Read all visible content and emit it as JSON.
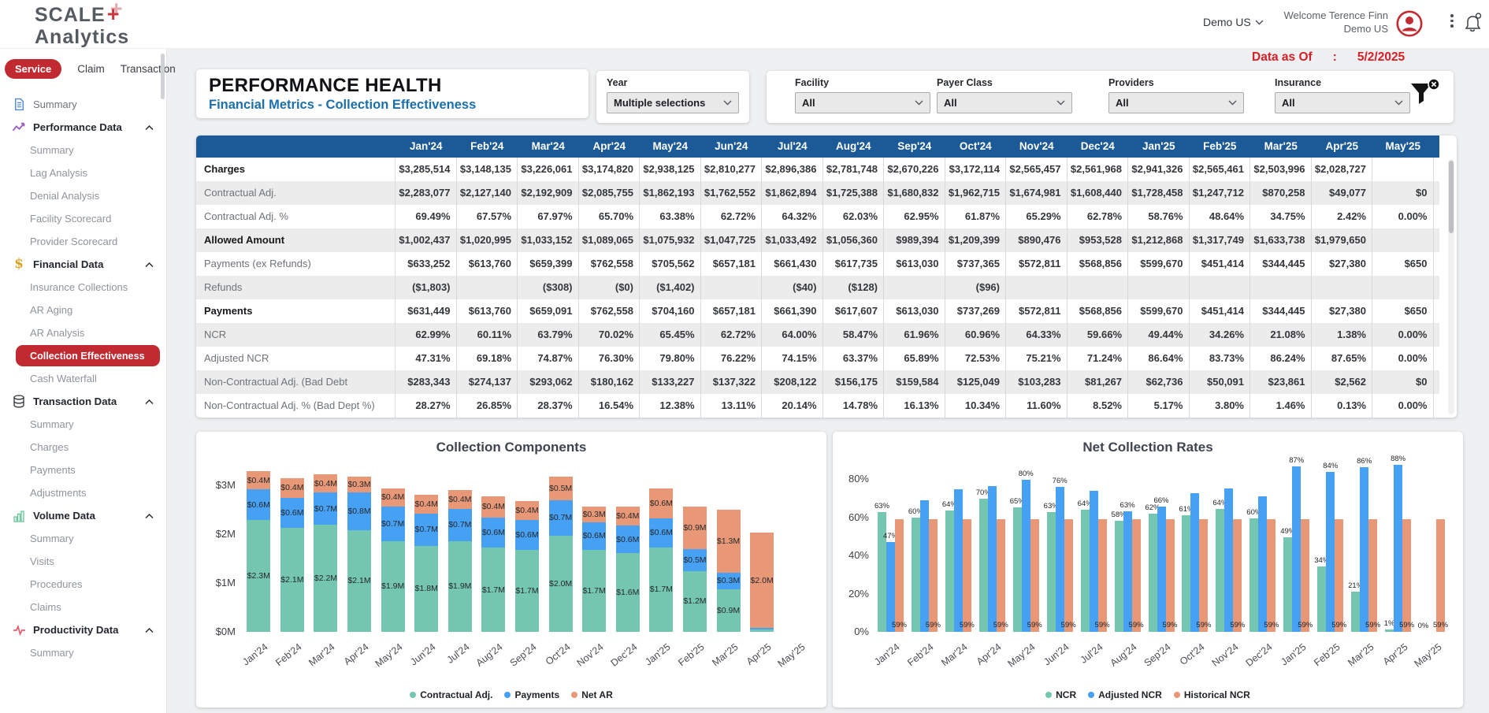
{
  "header": {
    "logo_line1": "SCALE",
    "logo_plus": "+",
    "logo_line2": "Analytics",
    "org_selector": "Demo US",
    "welcome_line1": "Welcome Terence Finn",
    "welcome_line2": "Demo US"
  },
  "sidebar": {
    "tabs": [
      {
        "label": "Service",
        "active": true
      },
      {
        "label": "Claim",
        "active": false
      },
      {
        "label": "Transaction",
        "active": false
      }
    ],
    "items": [
      {
        "label": "Summary",
        "icon": "document-icon",
        "level": 0,
        "group": false
      },
      {
        "label": "Performance Data",
        "icon": "trend-icon",
        "level": 0,
        "group": true
      },
      {
        "label": "Summary",
        "level": 1
      },
      {
        "label": "Lag Analysis",
        "level": 1
      },
      {
        "label": "Denial Analysis",
        "level": 1
      },
      {
        "label": "Facility Scorecard",
        "level": 1
      },
      {
        "label": "Provider Scorecard",
        "level": 1
      },
      {
        "label": "Financial Data",
        "icon": "dollar-icon",
        "level": 0,
        "group": true
      },
      {
        "label": "Insurance Collections",
        "level": 1
      },
      {
        "label": "AR Aging",
        "level": 1
      },
      {
        "label": "AR Analysis",
        "level": 1
      },
      {
        "label": "Collection Effectiveness",
        "level": 1,
        "selected": true
      },
      {
        "label": "Cash Waterfall",
        "level": 1
      },
      {
        "label": "Transaction Data",
        "icon": "database-icon",
        "level": 0,
        "group": true
      },
      {
        "label": "Summary",
        "level": 1
      },
      {
        "label": "Charges",
        "level": 1
      },
      {
        "label": "Payments",
        "level": 1
      },
      {
        "label": "Adjustments",
        "level": 1
      },
      {
        "label": "Volume Data",
        "icon": "bar-chart-icon",
        "level": 0,
        "group": true
      },
      {
        "label": "Summary",
        "level": 1
      },
      {
        "label": "Visits",
        "level": 1
      },
      {
        "label": "Procedures",
        "level": 1
      },
      {
        "label": "Claims",
        "level": 1
      },
      {
        "label": "Productivity Data",
        "icon": "pulse-icon",
        "level": 0,
        "group": true
      },
      {
        "label": "Summary",
        "level": 1
      }
    ]
  },
  "page": {
    "title": "PERFORMANCE HEALTH",
    "subtitle": "Financial Metrics - Collection Effectiveness"
  },
  "filters": {
    "data_as_of_label": "Data as Of",
    "data_as_of_colon": ":",
    "data_as_of_value": "5/2/2025",
    "year": {
      "label": "Year",
      "value": "Multiple selections"
    },
    "groups": [
      {
        "label": "Facility",
        "value": "All"
      },
      {
        "label": "Payer Class",
        "value": "All"
      },
      {
        "label": "Providers",
        "value": "All"
      },
      {
        "label": "Insurance",
        "value": "All"
      }
    ]
  },
  "table": {
    "columns": [
      "Jan'24",
      "Feb'24",
      "Mar'24",
      "Apr'24",
      "May'24",
      "Jun'24",
      "Jul'24",
      "Aug'24",
      "Sep'24",
      "Oct'24",
      "Nov'24",
      "Dec'24",
      "Jan'25",
      "Feb'25",
      "Mar'25",
      "Apr'25",
      "May'25"
    ],
    "rows": [
      {
        "label": "Charges",
        "bold": true,
        "values": [
          "$3,285,514",
          "$3,148,135",
          "$3,226,061",
          "$3,174,820",
          "$2,938,125",
          "$2,810,277",
          "$2,896,386",
          "$2,781,748",
          "$2,670,226",
          "$3,172,114",
          "$2,565,457",
          "$2,561,968",
          "$2,941,326",
          "$2,565,461",
          "$2,503,996",
          "$2,028,727",
          ""
        ]
      },
      {
        "label": "Contractual Adj.",
        "bold": false,
        "values": [
          "$2,283,077",
          "$2,127,140",
          "$2,192,909",
          "$2,085,755",
          "$1,862,193",
          "$1,762,552",
          "$1,862,894",
          "$1,725,388",
          "$1,680,832",
          "$1,962,715",
          "$1,674,981",
          "$1,608,440",
          "$1,728,458",
          "$1,247,712",
          "$870,258",
          "$49,077",
          "$0"
        ]
      },
      {
        "label": "Contractual Adj. %",
        "bold": false,
        "values": [
          "69.49%",
          "67.57%",
          "67.97%",
          "65.70%",
          "63.38%",
          "62.72%",
          "64.32%",
          "62.03%",
          "62.95%",
          "61.87%",
          "65.29%",
          "62.78%",
          "58.76%",
          "48.64%",
          "34.75%",
          "2.42%",
          "0.00%"
        ]
      },
      {
        "label": "Allowed Amount",
        "bold": true,
        "values": [
          "$1,002,437",
          "$1,020,995",
          "$1,033,152",
          "$1,089,065",
          "$1,075,932",
          "$1,047,725",
          "$1,033,492",
          "$1,056,360",
          "$989,394",
          "$1,209,399",
          "$890,476",
          "$953,528",
          "$1,212,868",
          "$1,317,749",
          "$1,633,738",
          "$1,979,650",
          ""
        ]
      },
      {
        "label": "Payments (ex Refunds)",
        "bold": false,
        "values": [
          "$633,252",
          "$613,760",
          "$659,399",
          "$762,558",
          "$705,562",
          "$657,181",
          "$661,430",
          "$617,735",
          "$613,030",
          "$737,365",
          "$572,811",
          "$568,856",
          "$599,670",
          "$451,414",
          "$344,445",
          "$27,380",
          "$650"
        ]
      },
      {
        "label": "Refunds",
        "bold": false,
        "values": [
          "($1,803)",
          "",
          "($308)",
          "($0)",
          "($1,402)",
          "",
          "($40)",
          "($128)",
          "",
          "($96)",
          "",
          "",
          "",
          "",
          "",
          "",
          ""
        ]
      },
      {
        "label": "Payments",
        "bold": true,
        "values": [
          "$631,449",
          "$613,760",
          "$659,091",
          "$762,558",
          "$704,160",
          "$657,181",
          "$661,390",
          "$617,607",
          "$613,030",
          "$737,269",
          "$572,811",
          "$568,856",
          "$599,670",
          "$451,414",
          "$344,445",
          "$27,380",
          "$650"
        ]
      },
      {
        "label": "NCR",
        "bold": false,
        "values": [
          "62.99%",
          "60.11%",
          "63.79%",
          "70.02%",
          "65.45%",
          "62.72%",
          "64.00%",
          "58.47%",
          "61.96%",
          "60.96%",
          "64.33%",
          "59.66%",
          "49.44%",
          "34.26%",
          "21.08%",
          "1.38%",
          "0.00%"
        ]
      },
      {
        "label": "Adjusted NCR",
        "bold": false,
        "values": [
          "47.31%",
          "69.18%",
          "74.87%",
          "76.30%",
          "79.80%",
          "76.22%",
          "74.15%",
          "63.37%",
          "65.89%",
          "72.53%",
          "75.21%",
          "71.24%",
          "86.64%",
          "83.73%",
          "86.24%",
          "87.65%",
          "0.00%"
        ]
      },
      {
        "label": "Non-Contractual Adj. (Bad Debt",
        "bold": false,
        "values": [
          "$283,343",
          "$274,137",
          "$293,062",
          "$180,162",
          "$133,227",
          "$137,322",
          "$208,122",
          "$156,175",
          "$159,584",
          "$125,049",
          "$103,283",
          "$81,267",
          "$62,736",
          "$50,091",
          "$23,861",
          "$2,562",
          "$0"
        ]
      },
      {
        "label": "Non-Contractual Adj. % (Bad Dept %)",
        "bold": false,
        "values": [
          "28.27%",
          "26.85%",
          "28.37%",
          "16.54%",
          "12.38%",
          "13.11%",
          "20.14%",
          "14.78%",
          "16.13%",
          "10.34%",
          "11.60%",
          "8.52%",
          "5.17%",
          "3.80%",
          "1.46%",
          "0.13%",
          "0.00%"
        ]
      }
    ]
  },
  "chart_data": [
    {
      "type": "bar",
      "variant": "stacked",
      "title": "Collection Components",
      "categories": [
        "Jan'24",
        "Feb'24",
        "Mar'24",
        "Apr'24",
        "May'24",
        "Jun'24",
        "Jul'24",
        "Aug'24",
        "Sep'24",
        "Oct'24",
        "Nov'24",
        "Dec'24",
        "Jan'25",
        "Feb'25",
        "Mar'25",
        "Apr'25",
        "May'25"
      ],
      "unit": "$M",
      "ylim": [
        0,
        3.5
      ],
      "grid": false,
      "legend_position": "bottom",
      "yticks": [
        {
          "v": 0,
          "label": "$0M"
        },
        {
          "v": 1,
          "label": "$1M"
        },
        {
          "v": 2,
          "label": "$2M"
        },
        {
          "v": 3,
          "label": "$3M"
        }
      ],
      "series": [
        {
          "name": "Contractual Adj.",
          "color": "#74c6b1",
          "values": [
            2.283,
            2.127,
            2.193,
            2.086,
            1.862,
            1.763,
            1.863,
            1.725,
            1.681,
            1.963,
            1.675,
            1.608,
            1.728,
            1.248,
            0.87,
            0.049,
            0
          ],
          "labels": [
            "$2.3M",
            "$2.1M",
            "$2.2M",
            "$2.1M",
            "$1.9M",
            "$1.8M",
            "$1.9M",
            "$1.7M",
            "$1.7M",
            "$2.0M",
            "$1.7M",
            "$1.6M",
            "$1.7M",
            "$1.2M",
            "$0.9M",
            "",
            ""
          ]
        },
        {
          "name": "Payments",
          "color": "#46a1f4",
          "values": [
            0.631,
            0.614,
            0.659,
            0.763,
            0.704,
            0.657,
            0.661,
            0.618,
            0.613,
            0.737,
            0.573,
            0.569,
            0.6,
            0.451,
            0.344,
            0.027,
            0.001
          ],
          "labels": [
            "$0.6M",
            "$0.6M",
            "$0.7M",
            "$0.8M",
            "$0.7M",
            "$0.7M",
            "$0.7M",
            "$0.6M",
            "$0.6M",
            "$0.7M",
            "$0.6M",
            "$0.6M",
            "$0.6M",
            "$0.5M",
            "$0.3M",
            "",
            ""
          ]
        },
        {
          "name": "Net AR",
          "color": "#e89877",
          "values": [
            0.372,
            0.407,
            0.374,
            0.326,
            0.372,
            0.39,
            0.372,
            0.439,
            0.376,
            0.472,
            0.317,
            0.385,
            0.613,
            0.866,
            1.29,
            1.953,
            0
          ],
          "labels": [
            "$0.4M",
            "$0.4M",
            "$0.4M",
            "$0.3M",
            "$0.4M",
            "$0.4M",
            "$0.4M",
            "$0.4M",
            "$0.4M",
            "$0.5M",
            "$0.3M",
            "$0.4M",
            "$0.6M",
            "$0.9M",
            "$1.3M",
            "$2.0M",
            ""
          ]
        }
      ],
      "legend": [
        "Contractual Adj.",
        "Payments",
        "Net AR"
      ]
    },
    {
      "type": "bar",
      "variant": "grouped",
      "title": "Net Collection Rates",
      "categories": [
        "Jan'24",
        "Feb'24",
        "Mar'24",
        "Apr'24",
        "May'24",
        "Jun'24",
        "Jul'24",
        "Aug'24",
        "Sep'24",
        "Oct'24",
        "Nov'24",
        "Dec'24",
        "Jan'25",
        "Feb'25",
        "Mar'25",
        "Apr'25",
        "May'25"
      ],
      "unit": "%",
      "ylim": [
        0,
        90
      ],
      "grid": false,
      "legend_position": "bottom",
      "yticks": [
        {
          "v": 0,
          "label": "0%"
        },
        {
          "v": 20,
          "label": "20%"
        },
        {
          "v": 40,
          "label": "40%"
        },
        {
          "v": 60,
          "label": "60%"
        },
        {
          "v": 80,
          "label": "80%"
        }
      ],
      "series": [
        {
          "name": "NCR",
          "color": "#74c6b1",
          "values": [
            62.99,
            60.11,
            63.79,
            70.02,
            65.45,
            62.72,
            64.0,
            58.47,
            61.96,
            60.96,
            64.33,
            59.66,
            49.44,
            34.26,
            21.08,
            1.38,
            0
          ],
          "labels": [
            "63%",
            "60%",
            "64%",
            "70%",
            "65%",
            "63%",
            "64%",
            "58%",
            "62%",
            "61%",
            "64%",
            "60%",
            "49%",
            "34%",
            "21%",
            "1%",
            "0%"
          ]
        },
        {
          "name": "Adjusted NCR",
          "color": "#46a1f4",
          "values": [
            47.31,
            69.18,
            74.87,
            76.3,
            79.8,
            76.22,
            74.15,
            63.37,
            65.89,
            72.53,
            75.21,
            71.24,
            86.64,
            83.73,
            86.24,
            87.65,
            0
          ],
          "labels": [
            "47%",
            "",
            "",
            "",
            "80%",
            "76%",
            "",
            "63%",
            "66%",
            "",
            "",
            "",
            "87%",
            "84%",
            "86%",
            "88%",
            ""
          ]
        },
        {
          "name": "Historical NCR",
          "color": "#e89877",
          "values": [
            59,
            59,
            59,
            59,
            59,
            59,
            59,
            59,
            59,
            59,
            59,
            59,
            59,
            59,
            59,
            59,
            59
          ],
          "labels": [
            "59%",
            "59%",
            "59%",
            "59%",
            "59%",
            "59%",
            "59%",
            "59%",
            "59%",
            "59%",
            "59%",
            "59%",
            "59%",
            "59%",
            "59%",
            "59%",
            "59%"
          ]
        }
      ],
      "legend": [
        "NCR",
        "Adjusted NCR",
        "Historical NCR"
      ]
    }
  ],
  "colors": {
    "accent_red": "#c22a31",
    "data_as_of_red": "#d61f26",
    "table_header_blue": "#1b5a96",
    "subtitle_blue": "#1b6fad",
    "teal": "#74c6b1",
    "blue": "#46a1f4",
    "orange": "#e89877"
  }
}
